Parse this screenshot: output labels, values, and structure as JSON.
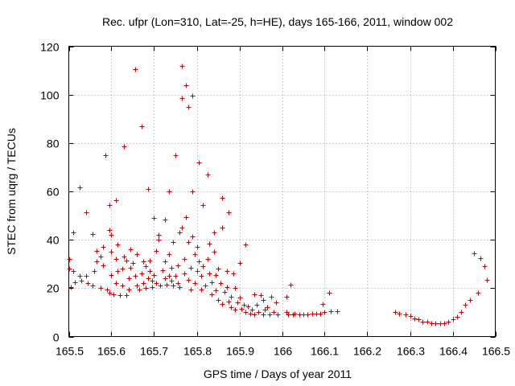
{
  "chart_data": {
    "type": "scatter",
    "title": "Rec. ufpr (Lon=310, Lat=-25, h=HE), days 165-166, 2011, window 002",
    "xlabel": "GPS time / Days of year 2011",
    "ylabel": "STEC from uqrg / TECUs",
    "xlim": [
      165.5,
      166.5
    ],
    "ylim": [
      0,
      120
    ],
    "xticks": [
      "165.5",
      "165.6",
      "165.7",
      "165.8",
      "165.9",
      "166",
      "166.1",
      "166.2",
      "166.3",
      "166.4",
      "166.5"
    ],
    "yticks": [
      "0",
      "20",
      "40",
      "60",
      "80",
      "100",
      "120"
    ],
    "grid": true,
    "marker": "+",
    "color": "#cc0000",
    "series": [
      {
        "name": "STEC",
        "points": [
          [
            165.5,
            32
          ],
          [
            165.5,
            28
          ],
          [
            165.505,
            20.5
          ],
          [
            165.51,
            27
          ],
          [
            165.51,
            43
          ],
          [
            165.515,
            22.5
          ],
          [
            165.525,
            61.5
          ],
          [
            165.525,
            25
          ],
          [
            165.53,
            23
          ],
          [
            165.54,
            25
          ],
          [
            165.54,
            51.5
          ],
          [
            165.545,
            22
          ],
          [
            165.555,
            42.5
          ],
          [
            165.555,
            21
          ],
          [
            165.56,
            27
          ],
          [
            165.565,
            31
          ],
          [
            165.565,
            35.5
          ],
          [
            165.575,
            20
          ],
          [
            165.575,
            33
          ],
          [
            165.58,
            29.5
          ],
          [
            165.58,
            37
          ],
          [
            165.585,
            75
          ],
          [
            165.59,
            19.5
          ],
          [
            165.595,
            18
          ],
          [
            165.595,
            54.5
          ],
          [
            165.595,
            44
          ],
          [
            165.6,
            42
          ],
          [
            165.6,
            25.5
          ],
          [
            165.6,
            35
          ],
          [
            165.605,
            17.5
          ],
          [
            165.61,
            22
          ],
          [
            165.61,
            56.5
          ],
          [
            165.61,
            32
          ],
          [
            165.615,
            27
          ],
          [
            165.615,
            38
          ],
          [
            165.62,
            17
          ],
          [
            165.625,
            21
          ],
          [
            165.625,
            28
          ],
          [
            165.63,
            33
          ],
          [
            165.63,
            78.5
          ],
          [
            165.635,
            17
          ],
          [
            165.635,
            31.5
          ],
          [
            165.64,
            19.5
          ],
          [
            165.64,
            24
          ],
          [
            165.645,
            36
          ],
          [
            165.645,
            28.5
          ],
          [
            165.65,
            30.5
          ],
          [
            165.655,
            25
          ],
          [
            165.655,
            110.5
          ],
          [
            165.66,
            21
          ],
          [
            165.66,
            34
          ],
          [
            165.665,
            19.5
          ],
          [
            165.67,
            26
          ],
          [
            165.67,
            87
          ],
          [
            165.675,
            22
          ],
          [
            165.675,
            31
          ],
          [
            165.68,
            20
          ],
          [
            165.68,
            29
          ],
          [
            165.685,
            61
          ],
          [
            165.685,
            24
          ],
          [
            165.69,
            27
          ],
          [
            165.69,
            31.5
          ],
          [
            165.695,
            20.5
          ],
          [
            165.695,
            23
          ],
          [
            165.7,
            49
          ],
          [
            165.7,
            25.5
          ],
          [
            165.705,
            35.5
          ],
          [
            165.705,
            22
          ],
          [
            165.71,
            40
          ],
          [
            165.71,
            42
          ],
          [
            165.715,
            21
          ],
          [
            165.72,
            27.5
          ],
          [
            165.725,
            24
          ],
          [
            165.725,
            31
          ],
          [
            165.725,
            48.5
          ],
          [
            165.73,
            21.5
          ],
          [
            165.735,
            60
          ],
          [
            165.735,
            25
          ],
          [
            165.735,
            34
          ],
          [
            165.74,
            28.5
          ],
          [
            165.74,
            23
          ],
          [
            165.745,
            39
          ],
          [
            165.745,
            21
          ],
          [
            165.75,
            75
          ],
          [
            165.75,
            25
          ],
          [
            165.755,
            29.5
          ],
          [
            165.755,
            22
          ],
          [
            165.76,
            43
          ],
          [
            165.76,
            20.5
          ],
          [
            165.765,
            112
          ],
          [
            165.765,
            98.5
          ],
          [
            165.765,
            45
          ],
          [
            165.77,
            26
          ],
          [
            165.77,
            32
          ],
          [
            165.775,
            49.5
          ],
          [
            165.775,
            104
          ],
          [
            165.78,
            95
          ],
          [
            165.78,
            39
          ],
          [
            165.78,
            23.5
          ],
          [
            165.785,
            19.5
          ],
          [
            165.785,
            28.5
          ],
          [
            165.79,
            99.5
          ],
          [
            165.79,
            60
          ],
          [
            165.79,
            41.5
          ],
          [
            165.795,
            22
          ],
          [
            165.795,
            34
          ],
          [
            165.8,
            27
          ],
          [
            165.8,
            37
          ],
          [
            165.805,
            72
          ],
          [
            165.805,
            31
          ],
          [
            165.81,
            19.5
          ],
          [
            165.81,
            25
          ],
          [
            165.815,
            54.5
          ],
          [
            165.815,
            29
          ],
          [
            165.82,
            21
          ],
          [
            165.825,
            67
          ],
          [
            165.825,
            32
          ],
          [
            165.83,
            38.5
          ],
          [
            165.83,
            26
          ],
          [
            165.835,
            17.5
          ],
          [
            165.835,
            22.5
          ],
          [
            165.84,
            43
          ],
          [
            165.84,
            35
          ],
          [
            165.845,
            19
          ],
          [
            165.845,
            25.5
          ],
          [
            165.85,
            15
          ],
          [
            165.85,
            28
          ],
          [
            165.855,
            22
          ],
          [
            165.86,
            57.5
          ],
          [
            165.86,
            45
          ],
          [
            165.86,
            13.5
          ],
          [
            165.865,
            18.5
          ],
          [
            165.87,
            27
          ],
          [
            165.87,
            20.5
          ],
          [
            165.875,
            51.5
          ],
          [
            165.875,
            14.5
          ],
          [
            165.88,
            12
          ],
          [
            165.88,
            16.5
          ],
          [
            165.885,
            26
          ],
          [
            165.89,
            11
          ],
          [
            165.89,
            20
          ],
          [
            165.895,
            14
          ],
          [
            165.9,
            30.5
          ],
          [
            165.9,
            16
          ],
          [
            165.905,
            11.5
          ],
          [
            165.91,
            13
          ],
          [
            165.915,
            38
          ],
          [
            165.915,
            10
          ],
          [
            165.92,
            12.5
          ],
          [
            165.925,
            9.5
          ],
          [
            165.93,
            11
          ],
          [
            165.935,
            17.5
          ],
          [
            165.935,
            9
          ],
          [
            165.94,
            13
          ],
          [
            165.945,
            10
          ],
          [
            165.95,
            17
          ],
          [
            165.955,
            9
          ],
          [
            165.955,
            15
          ],
          [
            165.96,
            11
          ],
          [
            165.965,
            12
          ],
          [
            165.97,
            9
          ],
          [
            165.975,
            16.5
          ],
          [
            165.98,
            10
          ],
          [
            165.985,
            14
          ],
          [
            165.99,
            9
          ],
          [
            166.01,
            16.5
          ],
          [
            166.01,
            10
          ],
          [
            166.015,
            9
          ],
          [
            166.02,
            21.5
          ],
          [
            166.025,
            9
          ],
          [
            166.03,
            9.5
          ],
          [
            166.04,
            9
          ],
          [
            166.05,
            9
          ],
          [
            166.06,
            9
          ],
          [
            166.07,
            9.5
          ],
          [
            166.08,
            9.5
          ],
          [
            166.09,
            9.5
          ],
          [
            166.095,
            13.5
          ],
          [
            166.1,
            10
          ],
          [
            166.11,
            18
          ],
          [
            166.115,
            10.5
          ],
          [
            166.13,
            10.5
          ],
          [
            166.265,
            10
          ],
          [
            166.275,
            9.5
          ],
          [
            166.29,
            9
          ],
          [
            166.3,
            8.5
          ],
          [
            166.31,
            7.5
          ],
          [
            166.32,
            7
          ],
          [
            166.33,
            6
          ],
          [
            166.34,
            6
          ],
          [
            166.35,
            5.5
          ],
          [
            166.36,
            5.5
          ],
          [
            166.37,
            5.5
          ],
          [
            166.38,
            5.5
          ],
          [
            166.39,
            6
          ],
          [
            166.4,
            7
          ],
          [
            166.41,
            8
          ],
          [
            166.42,
            10
          ],
          [
            166.43,
            13
          ],
          [
            166.44,
            15
          ],
          [
            166.45,
            34.5
          ],
          [
            166.46,
            18
          ],
          [
            166.465,
            32.5
          ],
          [
            166.475,
            29
          ],
          [
            166.48,
            23.5
          ]
        ]
      }
    ]
  }
}
